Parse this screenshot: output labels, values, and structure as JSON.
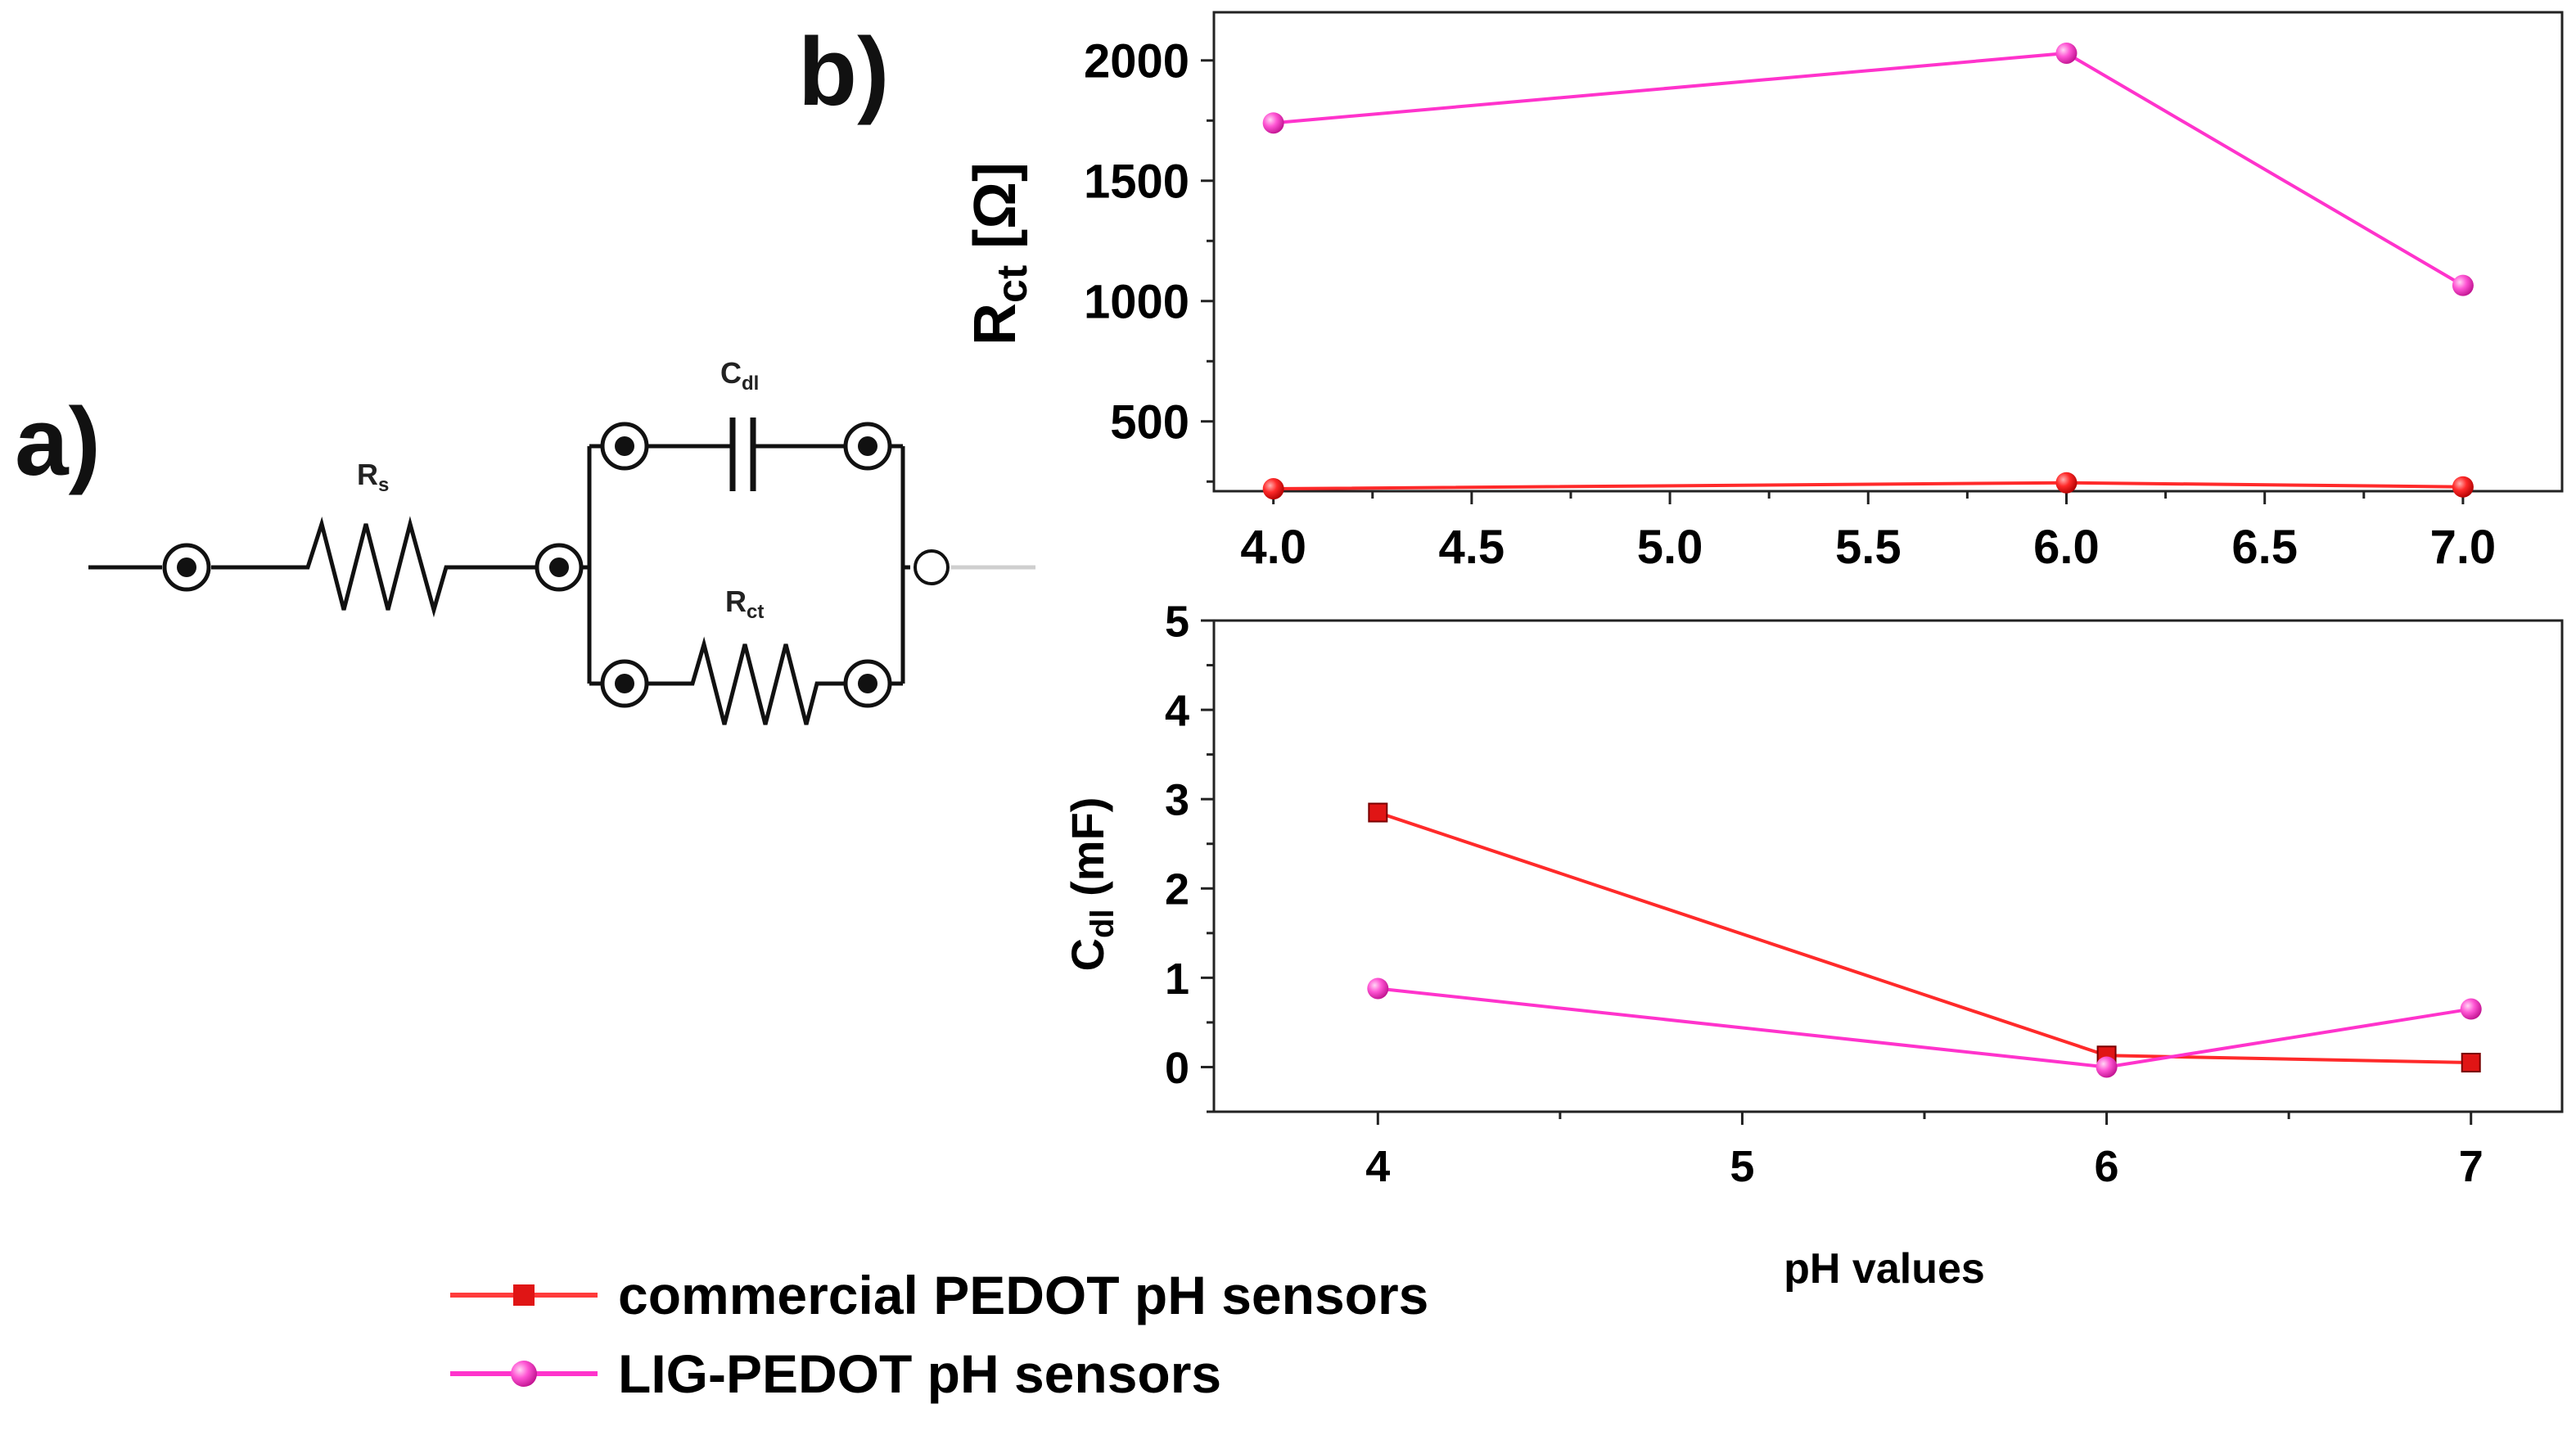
{
  "panels": {
    "a": "a)",
    "b": "b)"
  },
  "circuit": {
    "rs_label": {
      "main": "R",
      "sub": "s"
    },
    "cdl_label": {
      "main": "C",
      "sub": "dl"
    },
    "rct_label": {
      "main": "R",
      "sub": "ct"
    }
  },
  "colors": {
    "commercial": "#ff2a2a",
    "lig": "#ff33cc",
    "axis": "#222222"
  },
  "legend": {
    "items": [
      {
        "label": "commercial PEDOT pH sensors",
        "marker": "square",
        "color": "#ff3b3b"
      },
      {
        "label": "LIG-PEDOT pH sensors",
        "marker": "circle",
        "color": "#ff33cc"
      }
    ]
  },
  "chart_data": [
    {
      "type": "line",
      "title": "",
      "xlabel": "",
      "ylabel": {
        "main": "R",
        "sub": "ct",
        "unit": " [Ω]"
      },
      "xlim": [
        3.85,
        7.25
      ],
      "ylim": [
        210,
        2200
      ],
      "xticks": [
        4.0,
        4.5,
        5.0,
        5.5,
        6.0,
        6.5,
        7.0
      ],
      "xtick_labels": [
        "4.0",
        "4.5",
        "5.0",
        "5.5",
        "6.0",
        "6.5",
        "7.0"
      ],
      "yticks": [
        500,
        1000,
        1500,
        2000
      ],
      "ytick_labels": [
        "500",
        "1000",
        "1500",
        "2000"
      ],
      "series": [
        {
          "name": "commercial PEDOT pH sensors",
          "x": [
            4.0,
            6.0,
            7.0
          ],
          "values": [
            220,
            245,
            228
          ]
        },
        {
          "name": "LIG-PEDOT pH sensors",
          "x": [
            4.0,
            6.0,
            7.0
          ],
          "values": [
            1740,
            2030,
            1065
          ]
        }
      ]
    },
    {
      "type": "line",
      "title": "",
      "xlabel": "pH values",
      "ylabel": {
        "main": "C",
        "sub": "dl",
        "unit": " (mF)"
      },
      "xlim": [
        3.55,
        7.25
      ],
      "ylim": [
        -0.5,
        5.0
      ],
      "xticks": [
        4,
        5,
        6,
        7
      ],
      "xtick_labels": [
        "4",
        "5",
        "6",
        "7"
      ],
      "yticks": [
        0,
        1,
        2,
        3,
        4,
        5
      ],
      "ytick_labels": [
        "0",
        "1",
        "2",
        "3",
        "4",
        "5"
      ],
      "series": [
        {
          "name": "commercial PEDOT pH sensors",
          "x": [
            4,
            6,
            7
          ],
          "values": [
            2.85,
            0.13,
            0.05
          ]
        },
        {
          "name": "LIG-PEDOT pH sensors",
          "x": [
            4,
            6,
            7
          ],
          "values": [
            0.88,
            0.0,
            0.65
          ]
        }
      ]
    }
  ]
}
